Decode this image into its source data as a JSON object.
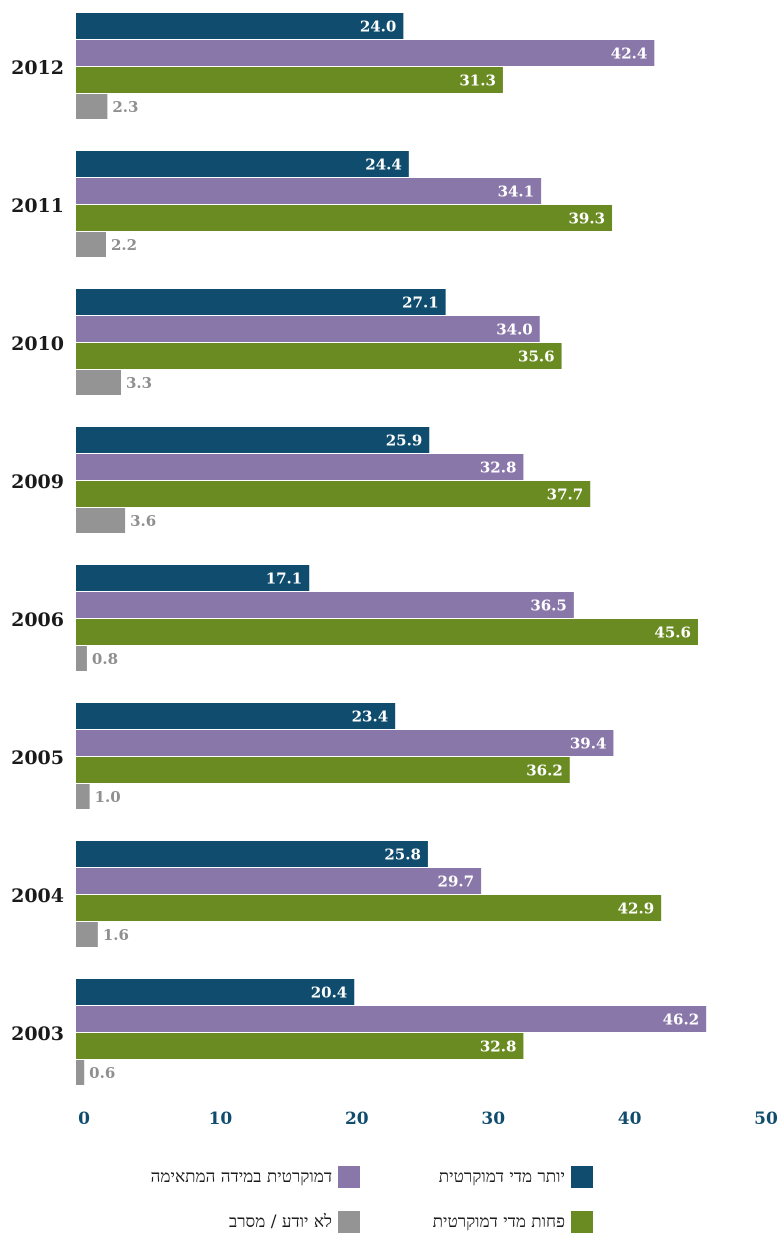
{
  "chart_data": {
    "type": "bar",
    "orientation": "horizontal",
    "categories": [
      "2012",
      "2011",
      "2010",
      "2009",
      "2006",
      "2005",
      "2004",
      "2003"
    ],
    "series": [
      {
        "name": "יותר מדי דמוקרטית",
        "color": "#0f4c6e",
        "label_color": "#ffffff",
        "values": [
          24.0,
          24.4,
          27.1,
          25.9,
          17.1,
          23.4,
          25.8,
          20.4
        ]
      },
      {
        "name": "דמוקרטית במידה המתאימה",
        "color": "#8a77aa",
        "label_color": "#ffffff",
        "values": [
          42.4,
          34.1,
          34.0,
          32.8,
          36.5,
          39.4,
          29.7,
          46.2
        ]
      },
      {
        "name": "פחות מדי דמוקרטית",
        "color": "#6a8b22",
        "label_color": "#ffffff",
        "values": [
          31.3,
          39.3,
          35.6,
          37.7,
          45.6,
          36.2,
          42.9,
          32.8
        ]
      },
      {
        "name": "לא יודע / מסרב",
        "color": "#949494",
        "label_color": "#8f8f8f",
        "values": [
          2.3,
          2.2,
          3.3,
          3.6,
          0.8,
          1.0,
          1.6,
          0.6
        ]
      }
    ],
    "value_labels": [
      [
        "24.0",
        "42.4",
        "31.3",
        "2.3"
      ],
      [
        "24.4",
        "34.1",
        "39.3",
        "2.2"
      ],
      [
        "27.1",
        "34.0",
        "35.6",
        "3.3"
      ],
      [
        "25.9",
        "32.8",
        "37.7",
        "3.6"
      ],
      [
        "17.1",
        "36.5",
        "45.6",
        "0.8"
      ],
      [
        "23.4",
        "39.4",
        "36.2",
        "1.0"
      ],
      [
        "25.8",
        "29.7",
        "42.9",
        "1.6"
      ],
      [
        "20.4",
        "46.2",
        "32.8",
        "0.6"
      ]
    ],
    "x_ticks": [
      "0",
      "10",
      "20",
      "30",
      "40",
      "50"
    ],
    "tick_color": "#0f4c6e",
    "xlim": [
      0,
      50
    ],
    "grid": false,
    "legend_position": "bottom"
  }
}
